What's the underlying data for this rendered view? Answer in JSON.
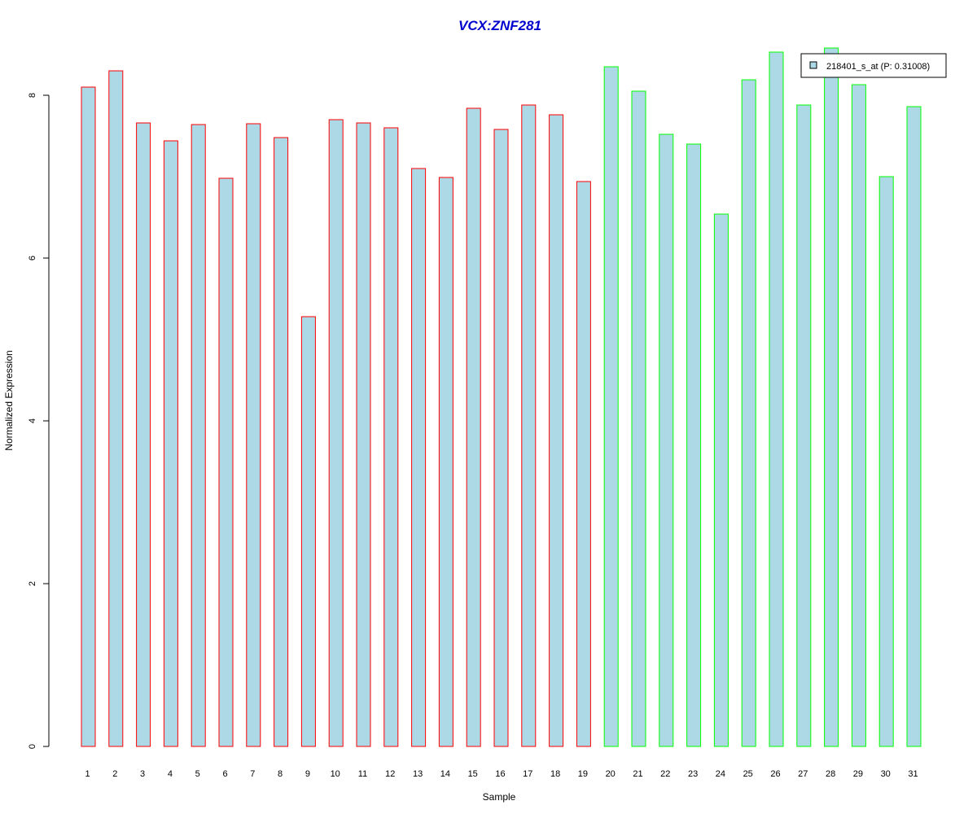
{
  "chart_data": {
    "type": "bar",
    "title": "VCX:ZNF281",
    "xlabel": "Sample",
    "ylabel": "Normalized Expression",
    "categories": [
      "1",
      "2",
      "3",
      "4",
      "5",
      "6",
      "7",
      "8",
      "9",
      "10",
      "11",
      "12",
      "13",
      "14",
      "15",
      "16",
      "17",
      "18",
      "19",
      "20",
      "21",
      "22",
      "23",
      "24",
      "25",
      "26",
      "27",
      "28",
      "29",
      "30",
      "31"
    ],
    "series": [
      {
        "name": "218401_s_at (P: 0.31008)",
        "values": [
          8.1,
          8.3,
          7.66,
          7.44,
          7.64,
          6.98,
          7.65,
          7.48,
          5.28,
          7.7,
          7.66,
          7.6,
          7.1,
          6.99,
          7.84,
          7.58,
          7.88,
          7.76,
          6.94,
          8.35,
          8.05,
          7.52,
          7.4,
          6.54,
          8.19,
          8.53,
          7.88,
          8.58,
          8.13,
          7.0,
          7.86
        ]
      }
    ],
    "groups": [
      {
        "from": 1,
        "to": 19,
        "border_color": "#ff0000"
      },
      {
        "from": 20,
        "to": 31,
        "border_color": "#00ff00"
      }
    ],
    "yticks": [
      0,
      2,
      4,
      6,
      8
    ],
    "ylim": [
      0,
      8.58
    ],
    "legend_position": "top-right",
    "grid": false,
    "colors": {
      "bar_fill": "#add8e6",
      "title": "#0000cd",
      "axis": "#000000"
    }
  }
}
